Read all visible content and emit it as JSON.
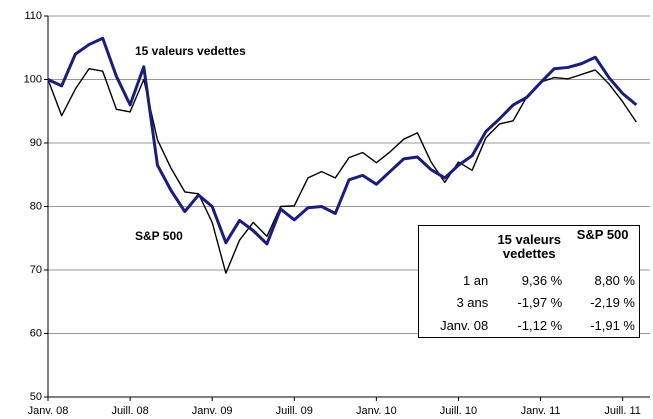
{
  "chart_data": {
    "type": "line",
    "x": [
      0,
      1,
      2,
      3,
      4,
      5,
      6,
      7,
      8,
      9,
      10,
      11,
      12,
      13,
      14,
      15,
      16,
      17,
      18,
      19,
      20,
      21,
      22,
      23,
      24,
      25,
      26,
      27,
      28,
      29,
      30,
      31,
      32,
      33,
      34,
      35,
      36,
      37,
      38,
      39,
      40,
      41,
      42,
      43
    ],
    "series": [
      {
        "name": "15 valeurs vedettes",
        "color": "#1c1c7c",
        "values": [
          100,
          99,
          104,
          105.5,
          106.5,
          100.5,
          96,
          102,
          86.5,
          82.5,
          79.2,
          81.8,
          80,
          74.3,
          77.8,
          76.2,
          74.1,
          79.6,
          77.9,
          79.8,
          80,
          78.9,
          84.2,
          84.9,
          83.5,
          85.5,
          87.5,
          87.8,
          85.8,
          84.5,
          86.5,
          88,
          91.8,
          93.8,
          96,
          97.2,
          99.5,
          101.7,
          101.9,
          102.5,
          103.5,
          100.3,
          97.8,
          96
        ]
      },
      {
        "name": "S&P 500",
        "color": "#000000",
        "values": [
          100,
          94.3,
          98.5,
          101.7,
          101.3,
          95.3,
          94.9,
          100,
          90.5,
          86,
          82.3,
          82,
          77.5,
          69.5,
          74.7,
          77.5,
          75.3,
          80,
          80.1,
          84.5,
          85.5,
          84.5,
          87.7,
          88.5,
          86.9,
          88.6,
          90.6,
          91.6,
          87,
          83.8,
          87,
          85.7,
          90.8,
          93,
          93.5,
          97.3,
          99.6,
          100.3,
          100.1,
          100.8,
          101.5,
          99.3,
          96.5,
          93.3
        ]
      }
    ],
    "xlim": [
      0,
      44
    ],
    "xticks": [
      {
        "value": 0,
        "label": "Janv. 08"
      },
      {
        "value": 6,
        "label": "Juill. 08"
      },
      {
        "value": 12,
        "label": "Janv. 09"
      },
      {
        "value": 18,
        "label": "Juill. 09"
      },
      {
        "value": 24,
        "label": "Janv. 10"
      },
      {
        "value": 30,
        "label": "Juill. 10"
      },
      {
        "value": 36,
        "label": "Janv. 11"
      },
      {
        "value": 42,
        "label": "Juill. 11"
      }
    ],
    "ylim": [
      50,
      110
    ],
    "yticks": [
      50,
      60,
      70,
      80,
      90,
      100,
      110
    ],
    "grid": true,
    "table": {
      "header": [
        "15 valeurs vedettes",
        "S&P 500"
      ],
      "rows": [
        [
          "1 an",
          "9,36 %",
          "8,80 %"
        ],
        [
          "3 ans",
          "-1,97 %",
          "-2,19 %"
        ],
        [
          "Janv. 08",
          "-1,12 %",
          "-1,91 %"
        ]
      ]
    }
  }
}
